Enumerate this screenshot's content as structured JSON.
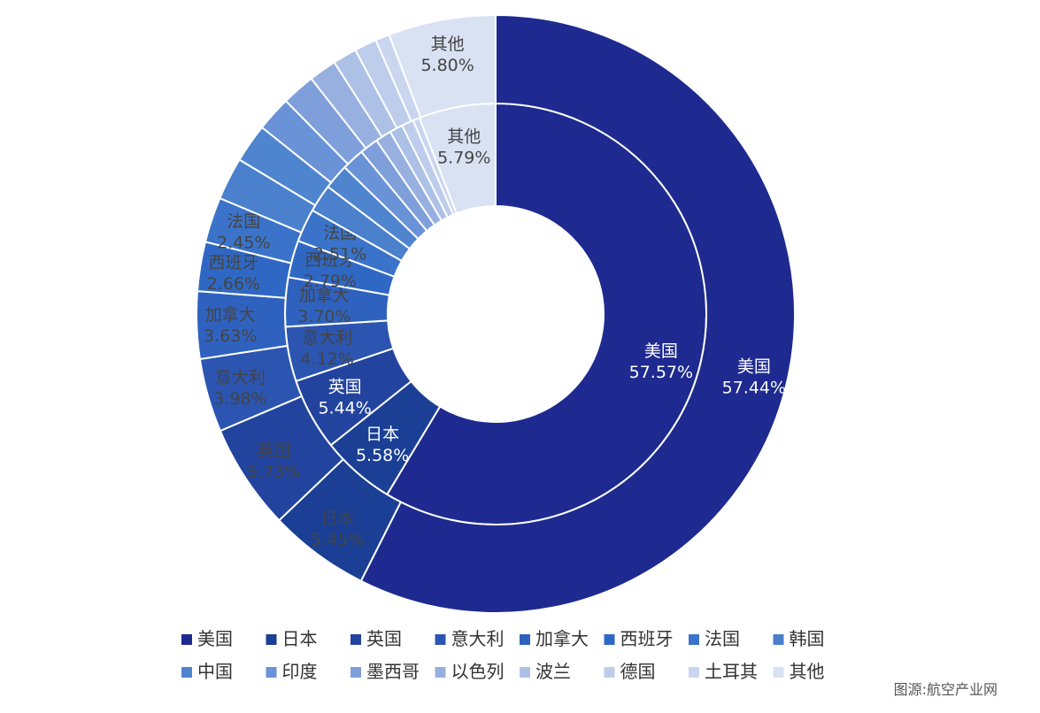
{
  "source": "图源:航空产业网",
  "chart_data": {
    "type": "pie",
    "subtype": "double-ring",
    "categories": [
      "美国",
      "日本",
      "英国",
      "意大利",
      "加拿大",
      "西班牙",
      "法国",
      "韩国",
      "中国",
      "印度",
      "墨西哥",
      "以色列",
      "波兰",
      "德国",
      "土耳其",
      "其他"
    ],
    "colors": [
      "#1e2a8f",
      "#1a3f95",
      "#22449e",
      "#2b55b0",
      "#2f62bf",
      "#2f68c4",
      "#3a73c9",
      "#4a80cc",
      "#4f85cf",
      "#6a92d6",
      "#7f9fdb",
      "#97b0e0",
      "#adc1e7",
      "#bdcdeb",
      "#cad6ef",
      "#d9e2f3"
    ],
    "series": [
      {
        "ring": "inner",
        "values": [
          57.57,
          5.58,
          5.44,
          4.12,
          3.7,
          2.79,
          2.51,
          2.1,
          1.9,
          1.7,
          1.4,
          1.2,
          1.0,
          0.9,
          0.51,
          5.79
        ],
        "value_labels": {
          "美国": "57.57%",
          "日本": "5.58%",
          "英国": "5.44%",
          "意大利": "4.12%",
          "加拿大": "3.70%",
          "西班牙": "2.79%",
          "法国": "2.51%",
          "其他": "5.79%"
        }
      },
      {
        "ring": "outer",
        "values": [
          57.44,
          5.45,
          5.73,
          3.98,
          3.63,
          2.66,
          2.45,
          2.3,
          2.1,
          1.9,
          1.8,
          1.5,
          1.3,
          1.2,
          0.77,
          5.8
        ],
        "value_labels": {
          "美国": "57.44%",
          "日本": "5.45%",
          "英国": "5.73%",
          "意大利": "3.98%",
          "加拿大": "3.63%",
          "西班牙": "2.66%",
          "法国": "2.45%",
          "其他": "5.80%"
        }
      }
    ],
    "legend_position": "bottom"
  }
}
